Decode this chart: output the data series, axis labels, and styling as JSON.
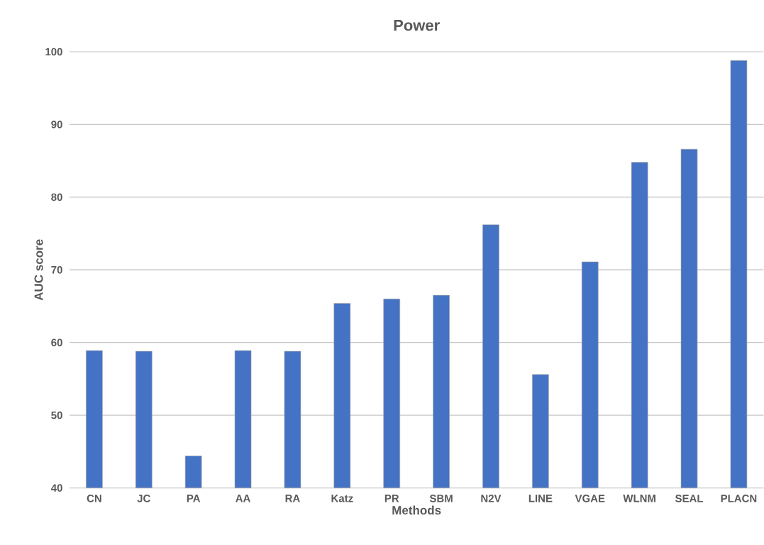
{
  "chart_data": {
    "type": "bar",
    "title": "Power",
    "xlabel": "Methods",
    "ylabel": "AUC score",
    "categories": [
      "CN",
      "JC",
      "PA",
      "AA",
      "RA",
      "Katz",
      "PR",
      "SBM",
      "N2V",
      "LINE",
      "VGAE",
      "WLNM",
      "SEAL",
      "PLACN"
    ],
    "values": [
      58.9,
      58.8,
      44.4,
      58.9,
      58.8,
      65.4,
      66.0,
      66.5,
      76.2,
      55.6,
      71.1,
      84.8,
      86.6,
      98.8
    ],
    "color": "#4472c4",
    "ylim": [
      40,
      100
    ],
    "yticks": [
      40,
      50,
      60,
      70,
      80,
      90,
      100
    ],
    "grid": "y"
  }
}
